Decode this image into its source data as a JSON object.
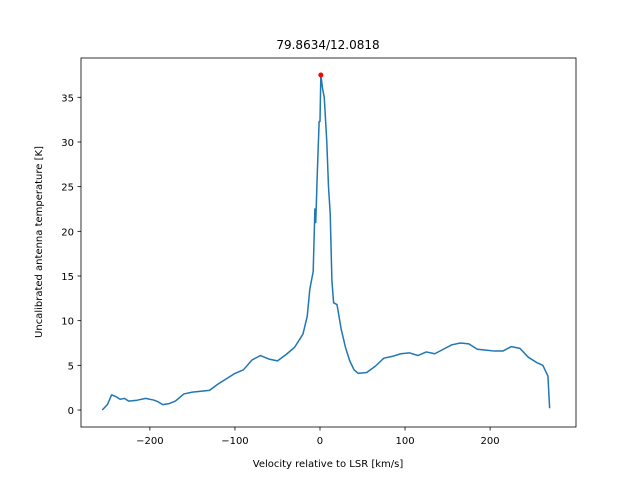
{
  "chart_data": {
    "type": "line",
    "title": "79.8634/12.0818",
    "x_label": "Velocity relative to LSR [km/s]",
    "y_label": "Uncalibrated antenna temperature [K]",
    "xlim": [
      -281,
      301
    ],
    "ylim": [
      -1.9,
      39.4
    ],
    "xticks": [
      {
        "value": -200,
        "label": "−200"
      },
      {
        "value": -100,
        "label": "−100"
      },
      0,
      100,
      200
    ],
    "yticks": [
      0,
      5,
      10,
      15,
      20,
      25,
      30,
      35
    ],
    "series": [
      {
        "color": "#1f77b4",
        "x": [
          -256,
          -250,
          -245,
          -240,
          -235,
          -230,
          -225,
          -215,
          -205,
          -195,
          -190,
          -185,
          -178,
          -170,
          -160,
          -150,
          -140,
          -130,
          -120,
          -110,
          -100,
          -90,
          -80,
          -70,
          -60,
          -50,
          -40,
          -30,
          -20,
          -15,
          -12,
          -8,
          -6,
          -5,
          -3,
          -1,
          0,
          1,
          3,
          5,
          8,
          10,
          12,
          14,
          16,
          20,
          25,
          30,
          35,
          40,
          45,
          55,
          65,
          75,
          85,
          95,
          105,
          115,
          125,
          135,
          145,
          155,
          165,
          175,
          185,
          195,
          205,
          215,
          225,
          235,
          245,
          255,
          262,
          268,
          270
        ],
        "values": [
          0,
          0.6,
          1.7,
          1.5,
          1.2,
          1.3,
          1.0,
          1.1,
          1.3,
          1.1,
          0.9,
          0.6,
          0.7,
          1.0,
          1.8,
          2.0,
          2.1,
          2.2,
          2.9,
          3.5,
          4.1,
          4.5,
          5.6,
          6.1,
          5.7,
          5.5,
          6.2,
          7.0,
          8.5,
          10.5,
          13.5,
          15.5,
          22.5,
          21,
          27,
          32.3,
          32.3,
          37.5,
          36,
          35,
          30,
          25,
          22,
          14.5,
          12,
          11.8,
          9,
          7,
          5.5,
          4.5,
          4.1,
          4.2,
          4.9,
          5.8,
          6.0,
          6.3,
          6.4,
          6.1,
          6.5,
          6.3,
          6.8,
          7.3,
          7.5,
          7.4,
          6.8,
          6.7,
          6.6,
          6.6,
          7.1,
          6.9,
          5.9,
          5.3,
          5.0,
          3.8,
          0.2
        ]
      }
    ],
    "peak": {
      "x": 1,
      "y": 37.5,
      "color": "red"
    }
  }
}
